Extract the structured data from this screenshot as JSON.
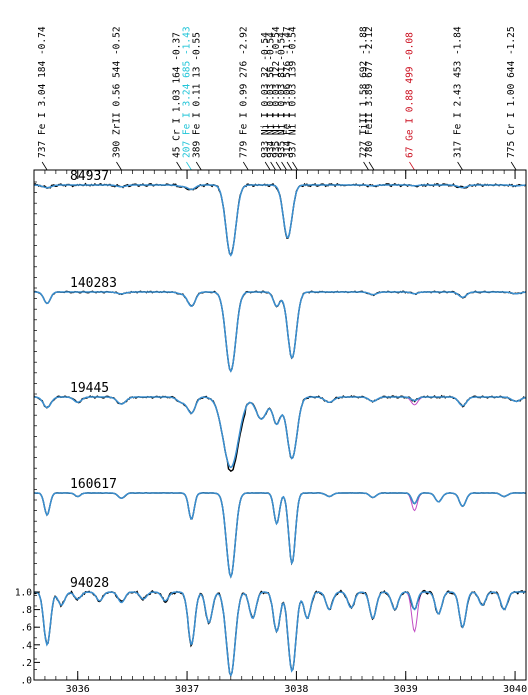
{
  "chart_data": {
    "type": "line",
    "title": "",
    "xlabel": "",
    "ylabel": "",
    "xlim": [
      3035.6,
      3040.1
    ],
    "x_ticks": [
      "3036",
      "3037",
      "3038",
      "3039",
      "3040"
    ],
    "y_ticks": [
      "1.0",
      ".8",
      ".6",
      ".4",
      ".2",
      ".0"
    ],
    "grid": false,
    "line_ids": [
      {
        "text": "737 Fe I  3.04 184 -0.74",
        "x": 3035.72,
        "highlight": ""
      },
      {
        "text": "390 ZrII  0.56 544 -0.52",
        "x": 3036.4,
        "highlight": ""
      },
      {
        "text": "45 Cr I  1.03 164 -0.37",
        "x": 3036.95,
        "highlight": ""
      },
      {
        "text": "207 Fe I  3.24 685 -1.43",
        "x": 3037.04,
        "highlight": "cyan"
      },
      {
        "text": "389 Fe I  0.11  13 -0.55",
        "x": 3037.13,
        "highlight": ""
      },
      {
        "text": "779 Fe I  0.99 276 -2.92",
        "x": 3037.56,
        "highlight": ""
      },
      {
        "text": "933 Ni I  0.03  32 -0.54",
        "x": 3037.76,
        "highlight": ""
      },
      {
        "text": "934 Ni I  0.03  56 -0.54",
        "x": 3037.81,
        "highlight": ""
      },
      {
        "text": "935 Ni I  0.03 122 -0.54",
        "x": 3037.86,
        "highlight": ""
      },
      {
        "text": "935 Ni I  0.03  81 -0.54",
        "x": 3037.91,
        "highlight": ""
      },
      {
        "text": "314 Fe I  3.06 576 -1.47",
        "x": 3037.96,
        "highlight": ""
      },
      {
        "text": "937 Ni I  0.03 139 -0.54",
        "x": 3038.01,
        "highlight": ""
      },
      {
        "text": "727 TiII  1.58 692 -1.88",
        "x": 3038.66,
        "highlight": ""
      },
      {
        "text": "780 FeII  3.89 677 -2.12",
        "x": 3038.71,
        "highlight": ""
      },
      {
        "text": "67 Ge I  0.88 499 -0.08",
        "x": 3039.08,
        "highlight": "red"
      },
      {
        "text": "317 Fe I  2.43 453 -1.84",
        "x": 3039.52,
        "highlight": ""
      },
      {
        "text": "775 Cr I  1.00 644 -1.25",
        "x": 3040.01,
        "highlight": ""
      }
    ],
    "colors": {
      "observed": "#000000",
      "synthetic": "#3a8fd0",
      "synthetic_alt": "#c24cc4",
      "cyan_label": "#22c5d8",
      "red_label": "#cc1020",
      "axis": "#000000"
    },
    "series": [
      {
        "name": "84937",
        "noise": 0.01,
        "lines": [
          [
            3035.72,
            0.03,
            0.04
          ],
          [
            3036.4,
            0.02,
            0.04
          ],
          [
            3036.95,
            0.015,
            0.04
          ],
          [
            3037.04,
            0.05,
            0.035
          ],
          [
            3037.4,
            0.8,
            0.045
          ],
          [
            3037.92,
            0.6,
            0.04
          ],
          [
            3038.7,
            0.01,
            0.035
          ],
          [
            3039.08,
            0.01,
            0.03
          ],
          [
            3039.52,
            0.03,
            0.04
          ],
          [
            3040.01,
            0.01,
            0.04
          ]
        ]
      },
      {
        "name": "140283",
        "noise": 0.006,
        "lines": [
          [
            3035.72,
            0.13,
            0.03
          ],
          [
            3036.4,
            0.02,
            0.04
          ],
          [
            3036.95,
            0.02,
            0.04
          ],
          [
            3037.04,
            0.16,
            0.035
          ],
          [
            3037.4,
            0.9,
            0.045
          ],
          [
            3037.82,
            0.16,
            0.03
          ],
          [
            3037.96,
            0.75,
            0.04
          ],
          [
            3038.7,
            0.03,
            0.035
          ],
          [
            3039.08,
            0.02,
            0.03
          ],
          [
            3039.52,
            0.06,
            0.035
          ],
          [
            3040.01,
            0.02,
            0.04
          ]
        ]
      },
      {
        "name": "19445",
        "noise": 0.008,
        "lines": [
          [
            3035.72,
            0.12,
            0.035
          ],
          [
            3036.0,
            0.06,
            0.035
          ],
          [
            3036.4,
            0.08,
            0.04
          ],
          [
            3036.95,
            0.06,
            0.04
          ],
          [
            3037.04,
            0.18,
            0.035
          ],
          [
            3037.4,
            0.8,
            0.07
          ],
          [
            3037.68,
            0.25,
            0.05
          ],
          [
            3037.82,
            0.3,
            0.035
          ],
          [
            3037.96,
            0.7,
            0.045
          ],
          [
            3038.3,
            0.06,
            0.04
          ],
          [
            3038.7,
            0.05,
            0.035
          ],
          [
            3039.08,
            0.04,
            0.03
          ],
          [
            3039.52,
            0.1,
            0.035
          ],
          [
            3040.01,
            0.05,
            0.04
          ]
        ]
      },
      {
        "name": "160617",
        "noise": 0.002,
        "lines": [
          [
            3035.72,
            0.25,
            0.025
          ],
          [
            3036.0,
            0.04,
            0.025
          ],
          [
            3036.4,
            0.06,
            0.03
          ],
          [
            3037.04,
            0.3,
            0.025
          ],
          [
            3037.4,
            0.95,
            0.04
          ],
          [
            3037.82,
            0.35,
            0.025
          ],
          [
            3037.96,
            0.8,
            0.03
          ],
          [
            3038.3,
            0.04,
            0.03
          ],
          [
            3038.7,
            0.05,
            0.03
          ],
          [
            3039.08,
            0.12,
            0.025
          ],
          [
            3039.3,
            0.1,
            0.03
          ],
          [
            3039.52,
            0.15,
            0.03
          ],
          [
            3039.9,
            0.04,
            0.03
          ]
        ]
      },
      {
        "name": "94028",
        "noise": 0.012,
        "lines": [
          [
            3035.72,
            0.6,
            0.03
          ],
          [
            3035.85,
            0.15,
            0.03
          ],
          [
            3036.0,
            0.08,
            0.03
          ],
          [
            3036.2,
            0.1,
            0.03
          ],
          [
            3036.4,
            0.12,
            0.03
          ],
          [
            3036.6,
            0.08,
            0.03
          ],
          [
            3036.8,
            0.1,
            0.03
          ],
          [
            3037.04,
            0.6,
            0.03
          ],
          [
            3037.2,
            0.35,
            0.03
          ],
          [
            3037.4,
            0.95,
            0.04
          ],
          [
            3037.6,
            0.3,
            0.03
          ],
          [
            3037.82,
            0.45,
            0.03
          ],
          [
            3037.96,
            0.9,
            0.035
          ],
          [
            3038.1,
            0.3,
            0.03
          ],
          [
            3038.3,
            0.2,
            0.03
          ],
          [
            3038.5,
            0.18,
            0.03
          ],
          [
            3038.7,
            0.3,
            0.03
          ],
          [
            3038.9,
            0.2,
            0.03
          ],
          [
            3039.08,
            0.2,
            0.025
          ],
          [
            3039.3,
            0.25,
            0.03
          ],
          [
            3039.52,
            0.4,
            0.03
          ],
          [
            3039.7,
            0.15,
            0.03
          ],
          [
            3039.9,
            0.2,
            0.03
          ]
        ]
      }
    ],
    "ge_line": {
      "x": 3039.08,
      "alt_depth_extra": [
        0.0,
        0.0,
        0.05,
        0.08,
        0.25
      ]
    }
  }
}
